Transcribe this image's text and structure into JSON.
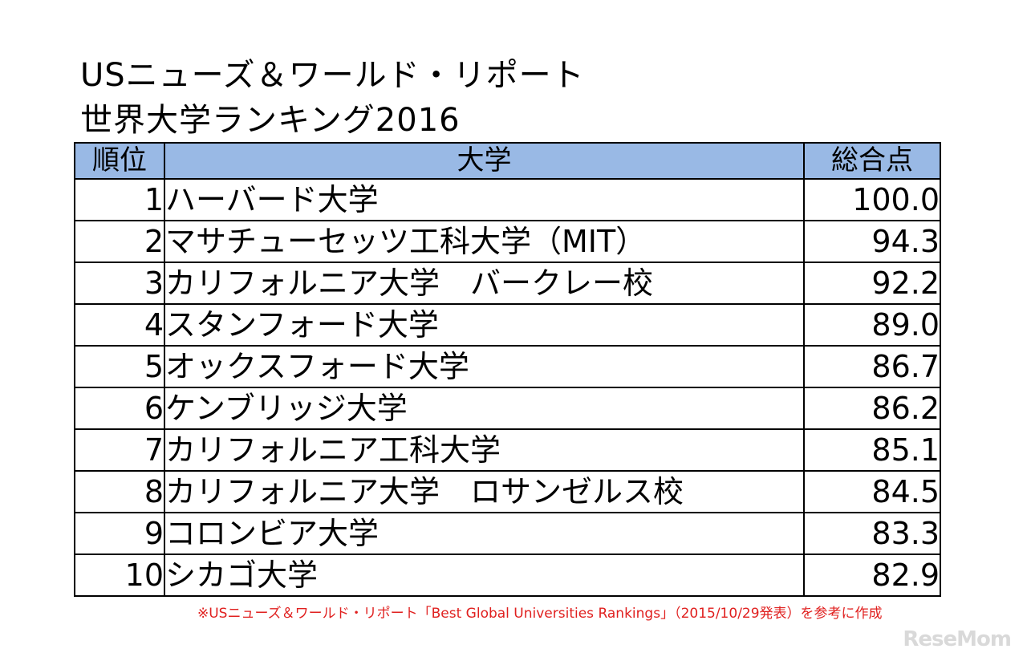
{
  "title": {
    "line1": "USニューズ＆ワールド・リポート",
    "line2": "世界大学ランキング2016"
  },
  "table": {
    "headers": {
      "rank": "順位",
      "university": "大学",
      "score": "総合点"
    },
    "header_bg": "#99b9e5",
    "rows": [
      {
        "rank": "1",
        "university": "ハーバード大学",
        "score": "100.0"
      },
      {
        "rank": "2",
        "university": "マサチューセッツ工科大学（MIT）",
        "score": "94.3"
      },
      {
        "rank": "3",
        "university": "カリフォルニア大学　バークレー校",
        "score": "92.2"
      },
      {
        "rank": "4",
        "university": "スタンフォード大学",
        "score": "89.0"
      },
      {
        "rank": "5",
        "university": "オックスフォード大学",
        "score": "86.7"
      },
      {
        "rank": "6",
        "university": "ケンブリッジ大学",
        "score": "86.2"
      },
      {
        "rank": "7",
        "university": "カリフォルニア工科大学",
        "score": "85.1"
      },
      {
        "rank": "8",
        "university": "カリフォルニア大学　ロサンゼルス校",
        "score": "84.5"
      },
      {
        "rank": "9",
        "university": "コロンビア大学",
        "score": "83.3"
      },
      {
        "rank": "10",
        "university": "シカゴ大学",
        "score": "82.9"
      }
    ]
  },
  "footnote": "※USニューズ＆ワールド・リポート「Best Global Universities Rankings」（2015/10/29発表）を参考に作成",
  "footnote_color": "#e0201f",
  "logo": "ReseMom"
}
